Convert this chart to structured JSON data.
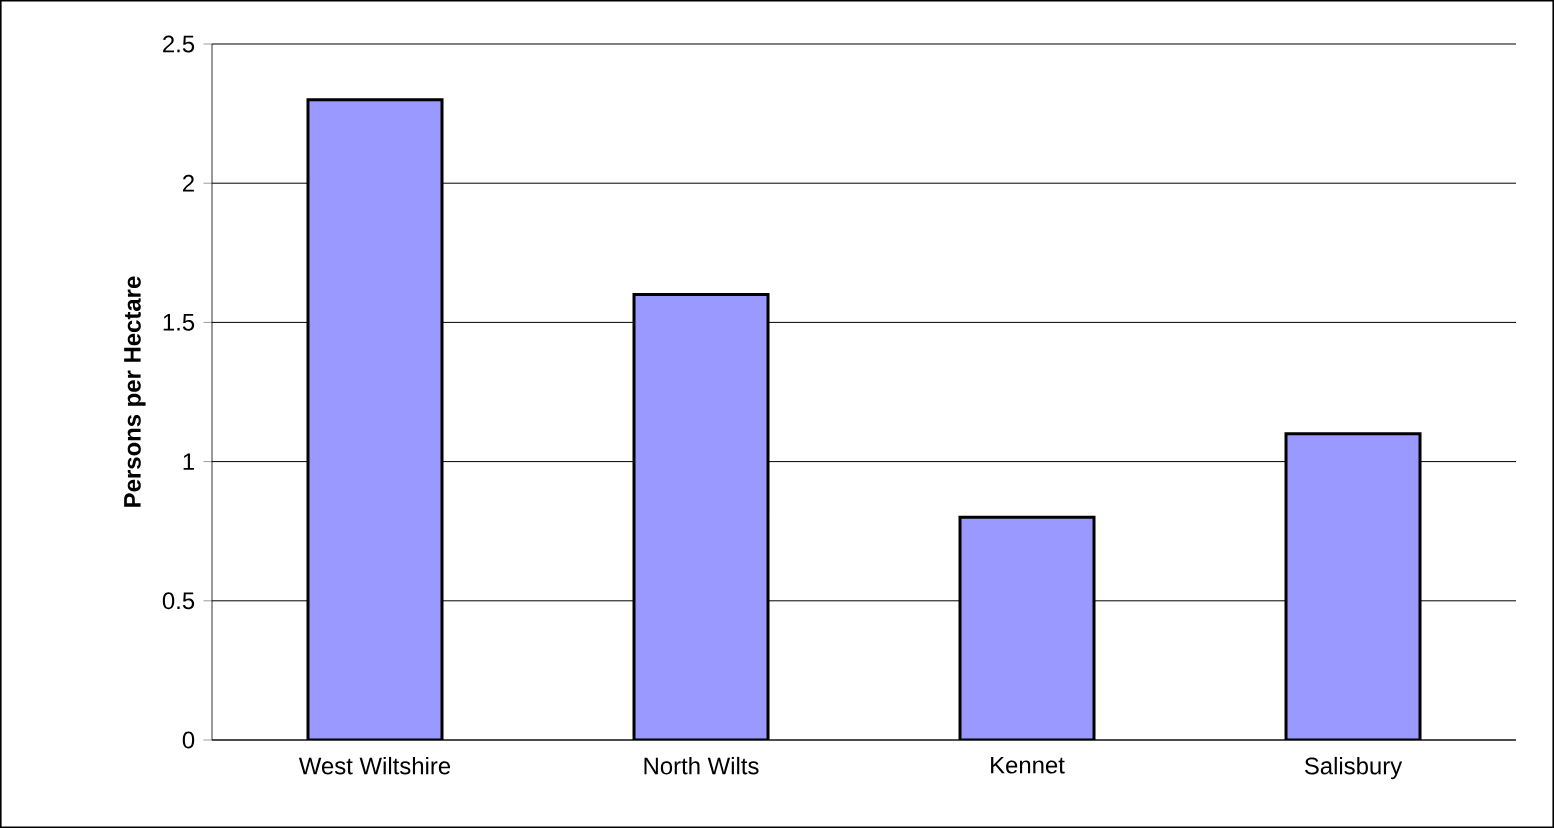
{
  "chart_data": {
    "type": "bar",
    "ylabel": "Persons per Hectare",
    "categories": [
      "West Wiltshire",
      "North Wilts",
      "Kennet",
      "Salisbury"
    ],
    "values": [
      2.3,
      1.6,
      0.8,
      1.1
    ],
    "color": "#9999ff",
    "ylim": [
      0,
      2.5
    ],
    "yticks": [
      0,
      0.5,
      1,
      1.5,
      2,
      2.5
    ],
    "grid": "y"
  }
}
